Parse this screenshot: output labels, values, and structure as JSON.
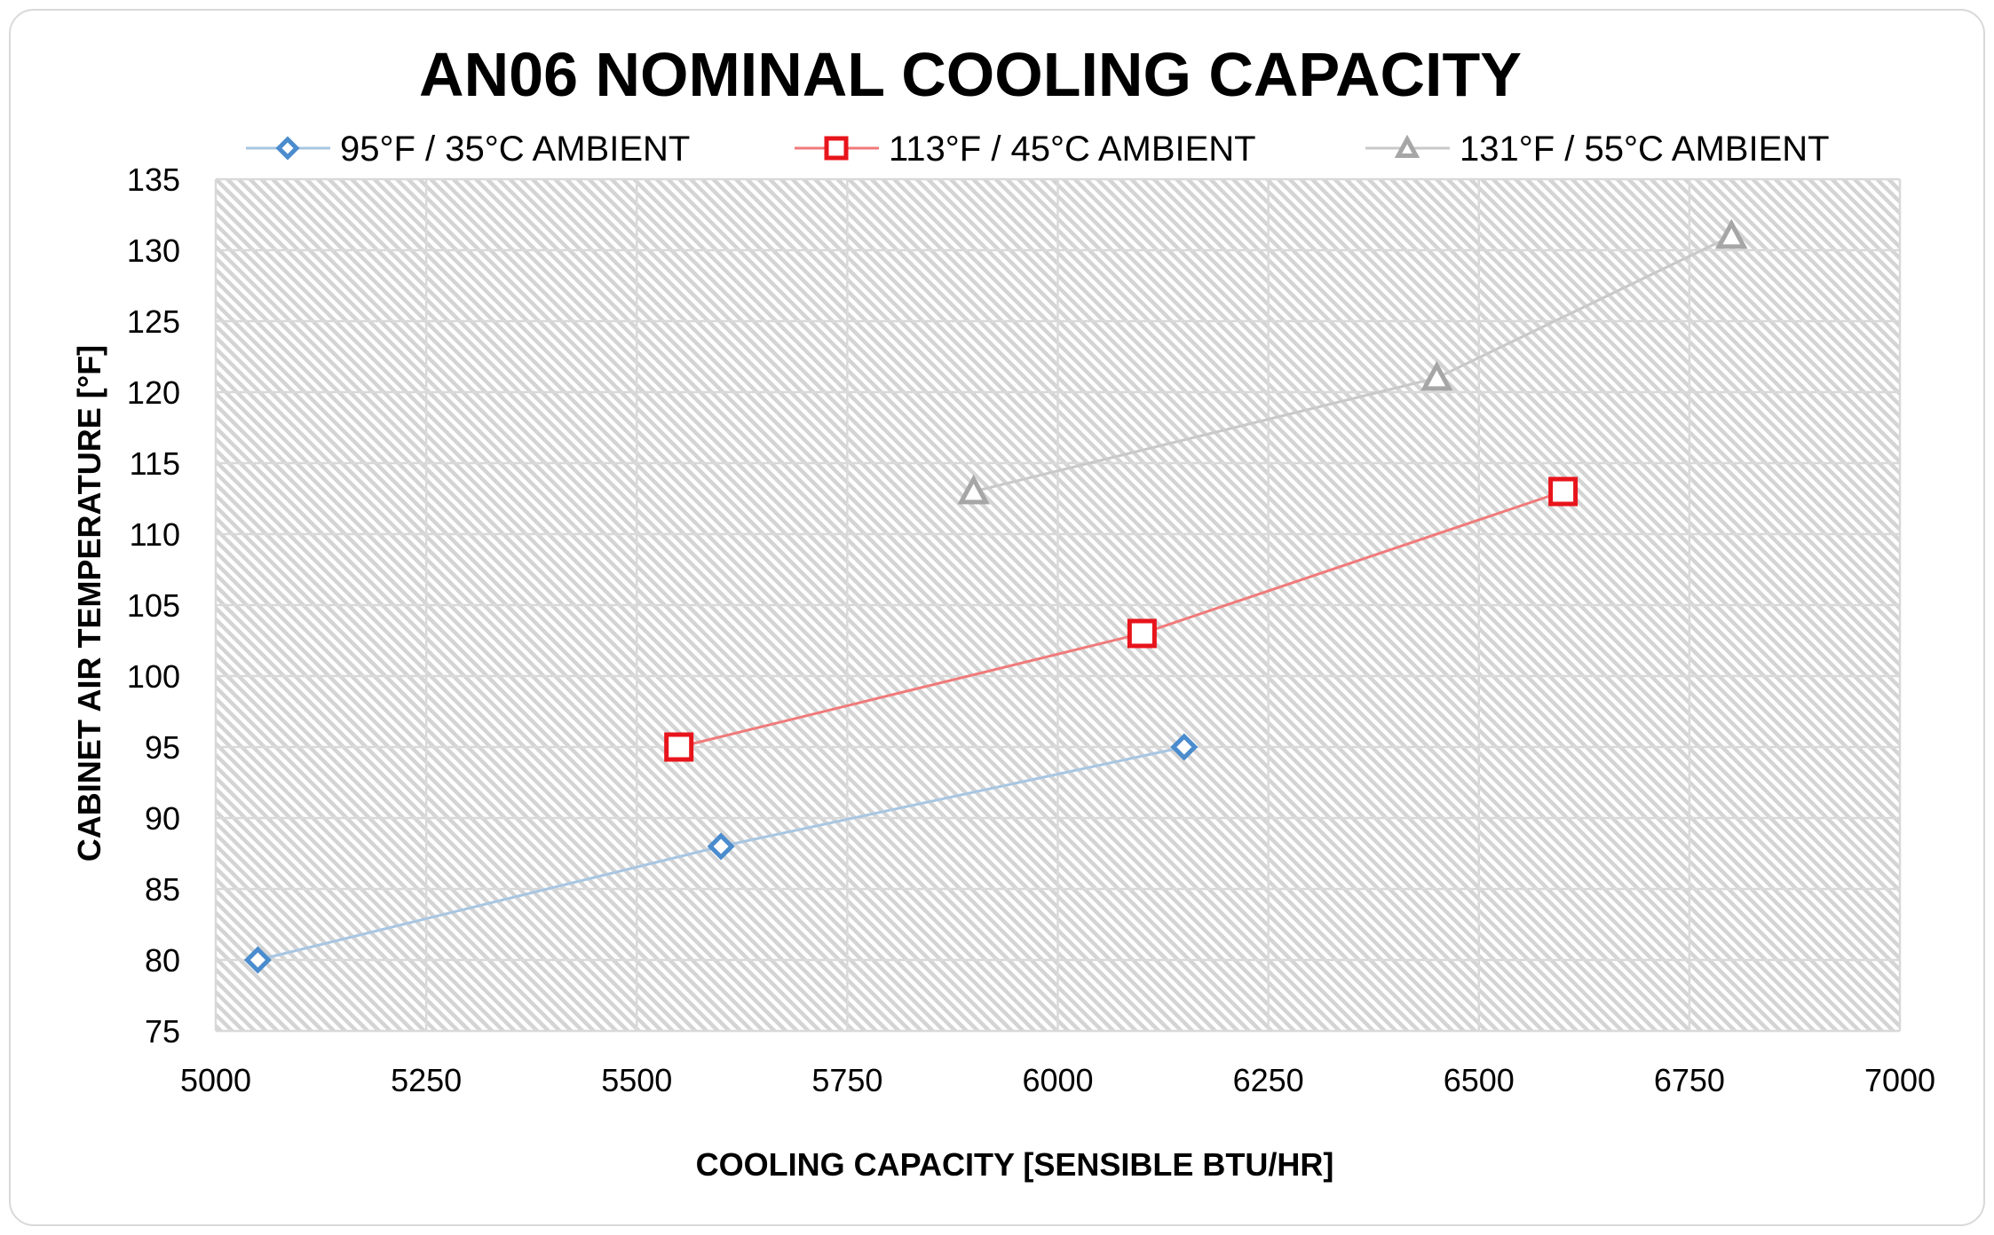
{
  "chart_data": {
    "type": "scatter",
    "title": "AN06 NOMINAL COOLING CAPACITY",
    "xlabel": "COOLING CAPACITY [SENSIBLE BTU/HR]",
    "ylabel": "CABINET AIR TEMPERATURE  [°F]",
    "xlim": [
      5000,
      7000
    ],
    "ylim": [
      75,
      135
    ],
    "xticks": [
      "5000",
      "5250",
      "5500",
      "5750",
      "6000",
      "6250",
      "6500",
      "6750",
      "7000"
    ],
    "yticks": [
      "75",
      "80",
      "85",
      "90",
      "95",
      "100",
      "105",
      "110",
      "115",
      "120",
      "125",
      "130",
      "135"
    ],
    "grid": true,
    "legend_position": "top",
    "series": [
      {
        "name": "95°F / 35°C AMBIENT",
        "marker": "diamond",
        "marker_color": "#4a8ccd",
        "line_color": "#a8c6e2",
        "points": [
          [
            5050,
            80
          ],
          [
            5600,
            88
          ],
          [
            6150,
            95
          ]
        ]
      },
      {
        "name": "113°F / 45°C AMBIENT",
        "marker": "square",
        "marker_color": "#e8141b",
        "line_color": "#f07a7a",
        "points": [
          [
            5550,
            95
          ],
          [
            6100,
            103
          ],
          [
            6600,
            113
          ]
        ]
      },
      {
        "name": "131°F / 55°C AMBIENT",
        "marker": "triangle",
        "marker_color": "#a6a6a6",
        "line_color": "#c9c9c9",
        "points": [
          [
            5900,
            113
          ],
          [
            6450,
            121
          ],
          [
            6800,
            131
          ]
        ]
      }
    ]
  }
}
